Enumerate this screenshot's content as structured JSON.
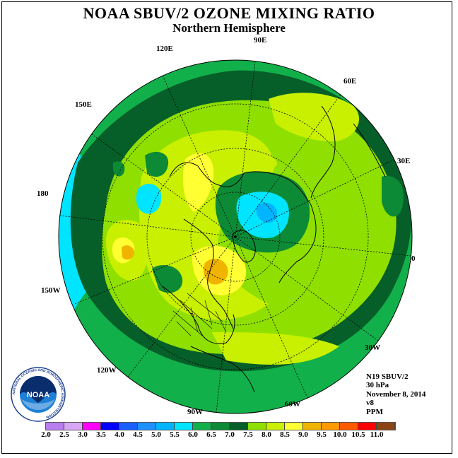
{
  "header": {
    "title": "NOAA SBUV/2 OZONE MIXING RATIO",
    "subtitle": "Northern Hemisphere"
  },
  "longitude_labels": [
    "90E",
    "60E",
    "30E",
    "0",
    "30W",
    "60W",
    "90W",
    "120W",
    "150W",
    "180",
    "150E",
    "120E"
  ],
  "info": {
    "instrument": "N19 SBUV/2",
    "level": "30 hPa",
    "date": "November 8, 2014",
    "version": "v8",
    "units": "PPM"
  },
  "colorbar": {
    "ticks": [
      "2.0",
      "2.5",
      "3.0",
      "3.5",
      "4.0",
      "4.5",
      "5.0",
      "5.5",
      "6.0",
      "6.5",
      "7.0",
      "7.5",
      "8.0",
      "8.5",
      "9.0",
      "9.5",
      "10.0",
      "10.5",
      "11.0"
    ],
    "colors": [
      "#b87ef0",
      "#d9a6f5",
      "#ff00ff",
      "#0000ff",
      "#1a5eff",
      "#1e90ff",
      "#00b4ff",
      "#00e5ff",
      "#12b04a",
      "#0d8a36",
      "#065f28",
      "#8fe000",
      "#c8f000",
      "#ffff33",
      "#f0b400",
      "#ff9a00",
      "#ff5a00",
      "#ff0000",
      "#8b4513"
    ]
  },
  "logo": {
    "text": "NOAA",
    "ring_text": "NATIONAL OCEANIC AND ATMOSPHERIC ADMINISTRATION"
  },
  "map_colors": {
    "band_6_0_6_5": "#12b04a",
    "band_6_5_7_0": "#0d8a36",
    "band_7_0_7_5": "#065f28",
    "band_7_5_8_0": "#8fe000",
    "band_8_0_8_5": "#c8f000",
    "band_8_5_9_0": "#ffff33",
    "band_9_0_9_5": "#f0b400",
    "band_5_5_6_0": "#00e5ff",
    "band_5_0_5_5": "#00b4ff"
  }
}
